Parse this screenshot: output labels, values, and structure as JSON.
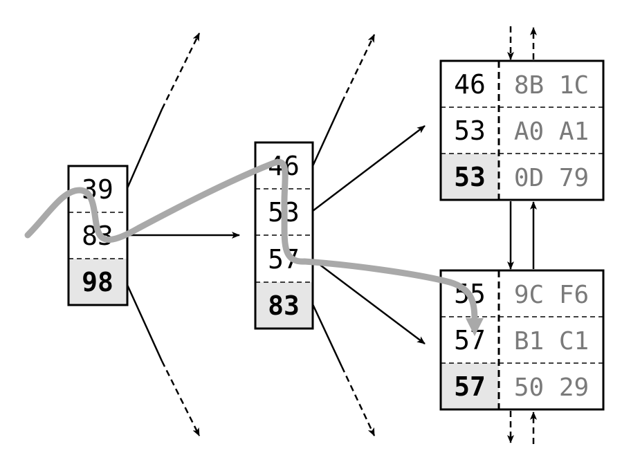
{
  "colors": {
    "stroke": "#000000",
    "separator_fill": "#e6e6e6",
    "value_text": "#7a7a7a",
    "path_highlight": "#a9a9a9"
  },
  "root_node": {
    "keys": [
      "39",
      "83"
    ],
    "separator": "98"
  },
  "inner_node": {
    "keys": [
      "46",
      "53",
      "57"
    ],
    "separator": "83"
  },
  "leaf_top": {
    "rows": [
      {
        "key": "46",
        "value": "8B 1C"
      },
      {
        "key": "53",
        "value": "A0 A1"
      }
    ],
    "separator": "53",
    "separator_value": "0D 79"
  },
  "leaf_bottom": {
    "rows": [
      {
        "key": "55",
        "value": "9C F6"
      },
      {
        "key": "57",
        "value": "B1 C1"
      }
    ],
    "separator": "57",
    "separator_value": "50 29"
  }
}
